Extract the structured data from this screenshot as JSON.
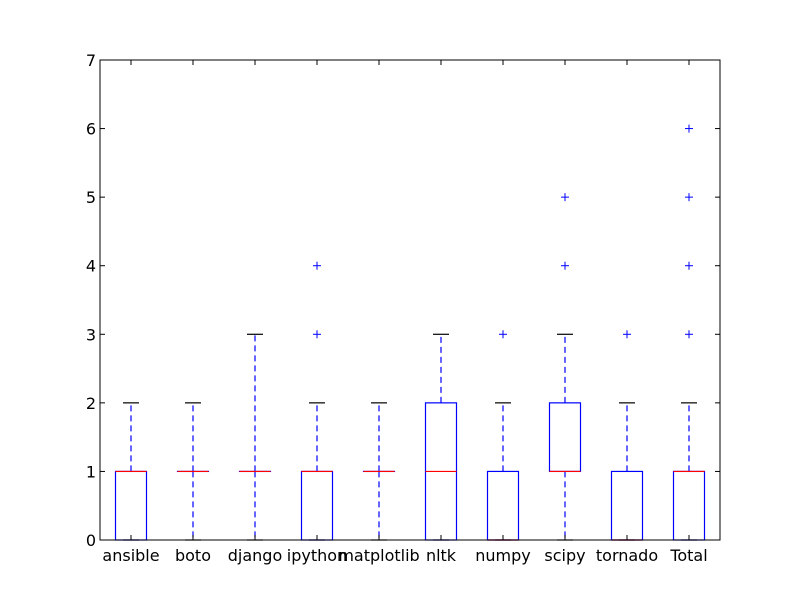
{
  "chart_data": {
    "type": "box",
    "categories": [
      "ansible",
      "boto",
      "django",
      "ipython",
      "matplotlib",
      "nltk",
      "numpy",
      "scipy",
      "tornado",
      "Total"
    ],
    "ylim": [
      0,
      7
    ],
    "yticks": [
      0,
      1,
      2,
      3,
      4,
      5,
      6,
      7
    ],
    "grid": false,
    "boxes": [
      {
        "name": "ansible",
        "whisker_low": 0,
        "q1": 0,
        "median": 1,
        "q3": 1,
        "whisker_high": 2,
        "outliers": []
      },
      {
        "name": "boto",
        "whisker_low": 0,
        "q1": 1,
        "median": 1,
        "q3": 1,
        "whisker_high": 2,
        "outliers": []
      },
      {
        "name": "django",
        "whisker_low": 0,
        "q1": 1,
        "median": 1,
        "q3": 1,
        "whisker_high": 3,
        "outliers": []
      },
      {
        "name": "ipython",
        "whisker_low": 0,
        "q1": 0,
        "median": 1,
        "q3": 1,
        "whisker_high": 2,
        "outliers": [
          3,
          4
        ]
      },
      {
        "name": "matplotlib",
        "whisker_low": 0,
        "q1": 1,
        "median": 1,
        "q3": 1,
        "whisker_high": 2,
        "outliers": []
      },
      {
        "name": "nltk",
        "whisker_low": 0,
        "q1": 0,
        "median": 1,
        "q3": 2,
        "whisker_high": 3,
        "outliers": []
      },
      {
        "name": "numpy",
        "whisker_low": 0,
        "q1": 0,
        "median": 0,
        "q3": 1,
        "whisker_high": 2,
        "outliers": [
          3
        ]
      },
      {
        "name": "scipy",
        "whisker_low": 0,
        "q1": 1,
        "median": 1,
        "q3": 2,
        "whisker_high": 3,
        "outliers": [
          4,
          5
        ]
      },
      {
        "name": "tornado",
        "whisker_low": 0,
        "q1": 0,
        "median": 0,
        "q3": 1,
        "whisker_high": 2,
        "outliers": [
          3
        ]
      },
      {
        "name": "Total",
        "whisker_low": 0,
        "q1": 0,
        "median": 1,
        "q3": 1,
        "whisker_high": 2,
        "outliers": [
          3,
          4,
          5,
          6
        ]
      }
    ],
    "colors": {
      "box": "#0000ff",
      "median": "#ff0000",
      "cap": "#000000",
      "flier": "#0000ff",
      "axes": "#000000"
    }
  }
}
